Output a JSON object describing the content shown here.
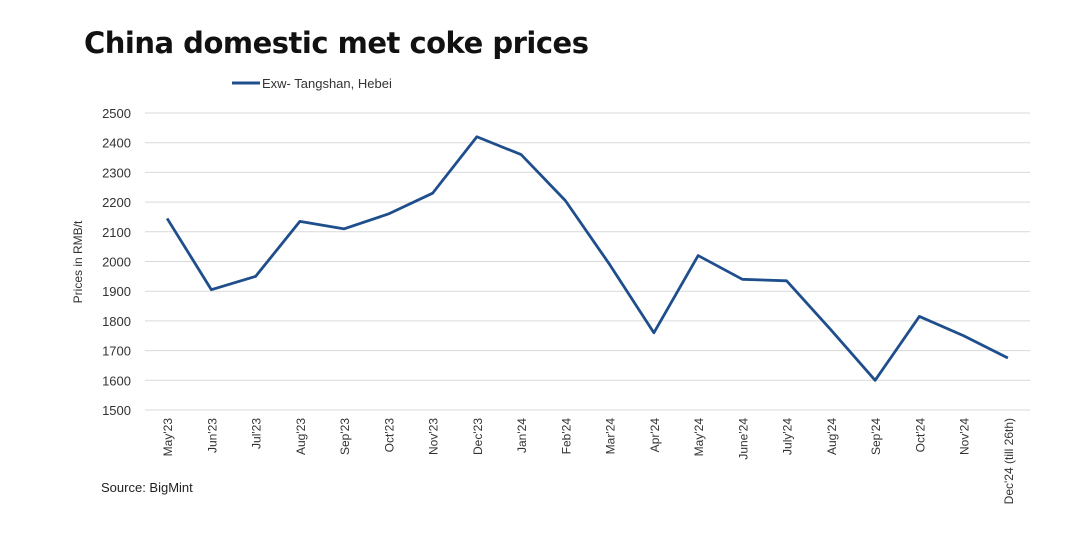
{
  "chart_data": {
    "type": "line",
    "title": "China domestic met coke prices",
    "ylabel": "Prices in RMB/t",
    "xlabel": "",
    "ylim": [
      1500,
      2500
    ],
    "yticks": [
      1500,
      1600,
      1700,
      1800,
      1900,
      2000,
      2100,
      2200,
      2300,
      2400,
      2500
    ],
    "grid": true,
    "legend_position": "top",
    "categories": [
      "May'23",
      "Jun'23",
      "Jul'23",
      "Aug'23",
      "Sep'23",
      "Oct'23",
      "Nov'23",
      "Dec'23",
      "Jan'24",
      "Feb'24",
      "Mar'24",
      "Apr'24",
      "May'24",
      "June'24",
      "July'24",
      "Aug'24",
      "Sep'24",
      "Oct'24",
      "Nov'24",
      "Dec'24 (till 26th)"
    ],
    "series": [
      {
        "name": "Exw- Tangshan, Hebei",
        "color": "#1f4e8c",
        "values": [
          2145,
          1905,
          1950,
          2135,
          2110,
          2160,
          2230,
          2420,
          2360,
          2205,
          1990,
          1760,
          2020,
          1940,
          1935,
          1770,
          1600,
          1815,
          1750,
          1675
        ]
      }
    ],
    "source": "Source: BigMint"
  }
}
